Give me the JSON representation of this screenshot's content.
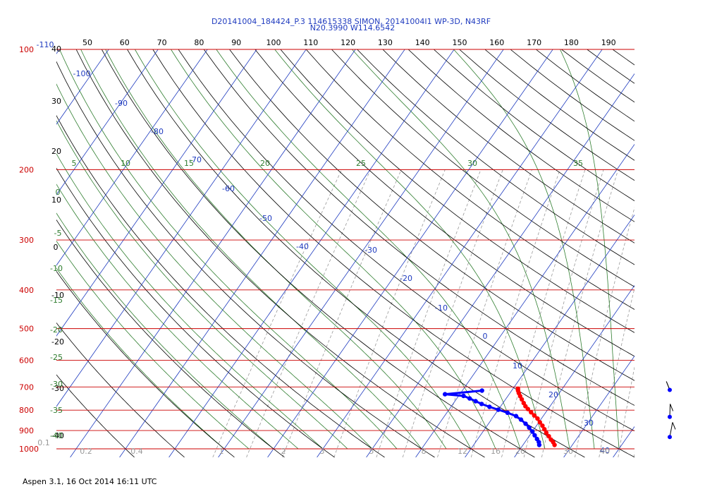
{
  "header": {
    "title_line1": "D20141004_184424_P.3 114615338 SIMON, 20141004I1 WP-3D, N43RF",
    "title_line2": "N20.3990 W114.6542"
  },
  "footer": {
    "text": "Aspen 3.1, 16 Oct 2014  16:11 UTC"
  },
  "colors": {
    "isobar": "#cc0000",
    "isotherm": "#1f3bbf",
    "dry_adiabat": "#000000",
    "moist_adiabat": "#2e7d2e",
    "mixing_ratio": "#999999",
    "temperature": "#ff0000",
    "dewpoint": "#0000ff",
    "wind_barb": "#000000"
  },
  "chart_data": {
    "type": "skew-t",
    "title": "D20141004_184424_P.3 114615338 SIMON, 20141004I1 WP-3D, N43RF",
    "subtitle": "N20.3990 W114.6542",
    "pressure_axis": {
      "ticks": [
        100,
        200,
        300,
        400,
        500,
        600,
        700,
        800,
        900,
        1000
      ],
      "scale": "log",
      "ylim": [
        1000,
        100
      ]
    },
    "top_axis_ticks": [
      50,
      60,
      70,
      80,
      90,
      100,
      110,
      120,
      130,
      140,
      150,
      160,
      170,
      180,
      190
    ],
    "isotherm_labels": [
      "-110",
      "-100",
      "-90",
      "-80",
      "-70",
      "-60",
      "-50",
      "-40",
      "-30",
      "-20",
      "-10",
      "0",
      "10",
      "20",
      "30",
      "40"
    ],
    "dry_adiabat_labels": [
      "40",
      "30",
      "20",
      "10",
      "0",
      "-10",
      "-20",
      "-30",
      "-40"
    ],
    "moist_adiabat_labels": [
      "5",
      "10",
      "15",
      "20",
      "25",
      "30",
      "35",
      "0",
      "-5",
      "-10",
      "-15",
      "-20",
      "-25",
      "-30",
      "-35",
      "-40"
    ],
    "mixing_ratio_labels": [
      "0.1",
      "0.2",
      "0.4",
      "1",
      "2",
      "3",
      "5",
      "8",
      "12",
      "16",
      "20",
      "30",
      "40"
    ],
    "series": [
      {
        "name": "Temperature",
        "points": [
          {
            "p": 707,
            "t": 11.0
          },
          {
            "p": 715,
            "t": 11.3
          },
          {
            "p": 725,
            "t": 11.8
          },
          {
            "p": 738,
            "t": 12.5
          },
          {
            "p": 752,
            "t": 13.3
          },
          {
            "p": 768,
            "t": 14.2
          },
          {
            "p": 782,
            "t": 15.0
          },
          {
            "p": 795,
            "t": 15.9
          },
          {
            "p": 810,
            "t": 17.0
          },
          {
            "p": 825,
            "t": 18.1
          },
          {
            "p": 840,
            "t": 19.2
          },
          {
            "p": 858,
            "t": 20.2
          },
          {
            "p": 875,
            "t": 21.2
          },
          {
            "p": 893,
            "t": 22.1
          },
          {
            "p": 912,
            "t": 23.0
          },
          {
            "p": 930,
            "t": 24.0
          },
          {
            "p": 948,
            "t": 24.9
          },
          {
            "p": 962,
            "t": 25.7
          },
          {
            "p": 978,
            "t": 26.4
          }
        ]
      },
      {
        "name": "Dewpoint",
        "points": [
          {
            "p": 715,
            "t": 4.0
          },
          {
            "p": 730,
            "t": -3.0
          },
          {
            "p": 737,
            "t": 1.0
          },
          {
            "p": 748,
            "t": 2.6
          },
          {
            "p": 760,
            "t": 4.2
          },
          {
            "p": 772,
            "t": 5.8
          },
          {
            "p": 785,
            "t": 7.8
          },
          {
            "p": 798,
            "t": 10.0
          },
          {
            "p": 812,
            "t": 12.3
          },
          {
            "p": 828,
            "t": 14.5
          },
          {
            "p": 845,
            "t": 16.0
          },
          {
            "p": 865,
            "t": 17.5
          },
          {
            "p": 885,
            "t": 18.8
          },
          {
            "p": 905,
            "t": 20.0
          },
          {
            "p": 925,
            "t": 21.0
          },
          {
            "p": 945,
            "t": 22.0
          },
          {
            "p": 962,
            "t": 22.8
          },
          {
            "p": 978,
            "t": 23.3
          }
        ]
      }
    ],
    "wind_barbs": [
      {
        "p": 712,
        "direction": 300,
        "speed_kt": 15
      },
      {
        "p": 832,
        "direction": 320,
        "speed_kt": 15
      },
      {
        "p": 934,
        "direction": 330,
        "speed_kt": 15
      }
    ]
  }
}
